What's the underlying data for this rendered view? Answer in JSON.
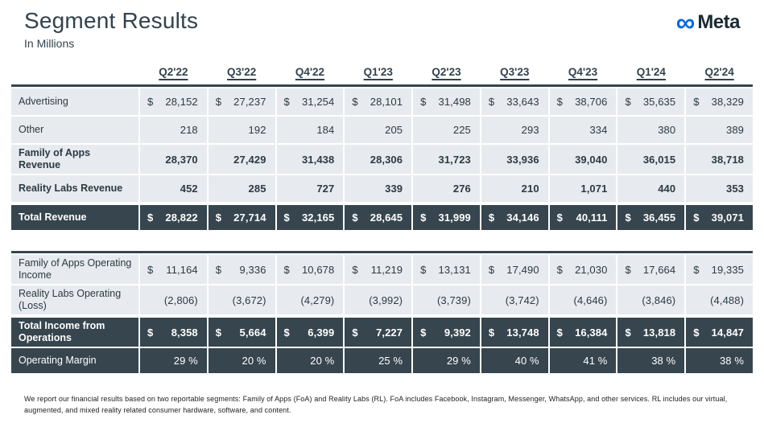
{
  "header": {
    "title": "Segment Results",
    "subtitle": "In Millions",
    "logo_text": "Meta"
  },
  "colors": {
    "accent_blue": "#0668E1",
    "dark_row": "#36454e",
    "light_cell": "#e7eaee",
    "title_text": "#33424d"
  },
  "table": {
    "quarters": [
      "Q2'22",
      "Q3'22",
      "Q4'22",
      "Q1'23",
      "Q2'23",
      "Q3'23",
      "Q4'23",
      "Q1'24",
      "Q2'24"
    ],
    "revenue_rows": [
      {
        "label": "Advertising",
        "dollar": true,
        "bold": false,
        "dark": false,
        "values": [
          "28,152",
          "27,237",
          "31,254",
          "28,101",
          "31,498",
          "33,643",
          "38,706",
          "35,635",
          "38,329"
        ]
      },
      {
        "label": "Other",
        "dollar": false,
        "bold": false,
        "dark": false,
        "values": [
          "218",
          "192",
          "184",
          "205",
          "225",
          "293",
          "334",
          "380",
          "389"
        ]
      },
      {
        "label": "Family of Apps Revenue",
        "dollar": false,
        "bold": true,
        "dark": false,
        "values": [
          "28,370",
          "27,429",
          "31,438",
          "28,306",
          "31,723",
          "33,936",
          "39,040",
          "36,015",
          "38,718"
        ]
      },
      {
        "label": "Reality Labs Revenue",
        "dollar": false,
        "bold": true,
        "dark": false,
        "values": [
          "452",
          "285",
          "727",
          "339",
          "276",
          "210",
          "1,071",
          "440",
          "353"
        ]
      },
      {
        "label": "Total Revenue",
        "dollar": true,
        "bold": true,
        "dark": true,
        "values": [
          "28,822",
          "27,714",
          "32,165",
          "28,645",
          "31,999",
          "34,146",
          "40,111",
          "36,455",
          "39,071"
        ]
      }
    ],
    "income_rows": [
      {
        "label": "Family of Apps Operating Income",
        "dollar": true,
        "bold": false,
        "dark": false,
        "values": [
          "11,164",
          "9,336",
          "10,678",
          "11,219",
          "13,131",
          "17,490",
          "21,030",
          "17,664",
          "19,335"
        ]
      },
      {
        "label": "Reality Labs Operating (Loss)",
        "dollar": false,
        "bold": false,
        "dark": false,
        "values": [
          "(2,806)",
          "(3,672)",
          "(4,279)",
          "(3,992)",
          "(3,739)",
          "(3,742)",
          "(4,646)",
          "(3,846)",
          "(4,488)"
        ]
      },
      {
        "label": "Total Income from Operations",
        "dollar": true,
        "bold": true,
        "dark": true,
        "values": [
          "8,358",
          "5,664",
          "6,399",
          "7,227",
          "9,392",
          "13,748",
          "16,384",
          "13,818",
          "14,847"
        ]
      },
      {
        "label": "Operating Margin",
        "dollar": false,
        "bold": false,
        "dark": true,
        "nogap": true,
        "values": [
          "29 %",
          "20 %",
          "20 %",
          "25 %",
          "29 %",
          "40 %",
          "41 %",
          "38 %",
          "38 %"
        ]
      }
    ]
  },
  "footnote": "We report our financial results based on two reportable segments: Family of Apps (FoA) and Reality Labs (RL). FoA includes Facebook, Instagram, Messenger, WhatsApp, and other services. RL includes our virtual, augmented, and mixed reality related consumer hardware, software, and content."
}
